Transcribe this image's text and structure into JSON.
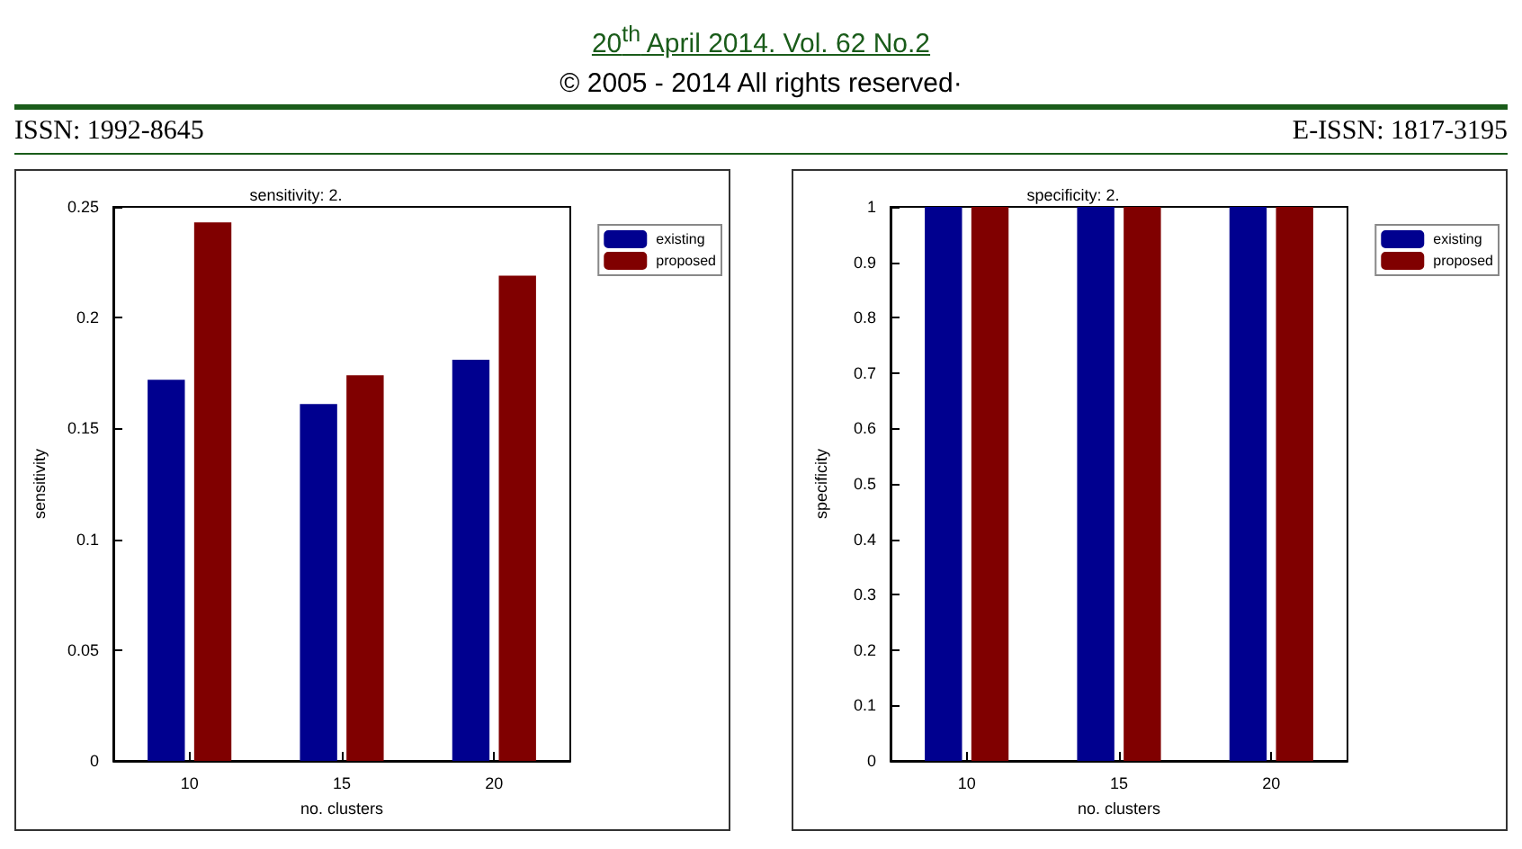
{
  "chart_data": [
    {
      "type": "bar",
      "title": "sensitivity: 2.",
      "xlabel": "no. clusters",
      "ylabel": "sensitivity",
      "categories": [
        "10",
        "15",
        "20"
      ],
      "series": [
        {
          "name": "existing",
          "color": "#00008f",
          "values": [
            0.172,
            0.161,
            0.181
          ]
        },
        {
          "name": "proposed",
          "color": "#800000",
          "values": [
            0.243,
            0.174,
            0.219
          ]
        }
      ],
      "ylim": [
        0,
        0.25
      ],
      "yticks": [
        0,
        0.05,
        0.1,
        0.15,
        0.2,
        0.25
      ],
      "grid": false,
      "legend": "top right",
      "annotations": [
        "20$^{th}$ April 2014. Vol. 62 No.2",
        "© 2005 - 2014 All rights reserved·",
        "ISSN: 1992-8645",
        "E-ISSN: 1817-3195"
      ]
    },
    {
      "type": "bar",
      "title": "specificity: 2.",
      "xlabel": "no. clusters",
      "ylabel": "specificity",
      "categories": [
        "10",
        "15",
        "20"
      ],
      "series": [
        {
          "name": "existing",
          "color": "#00008f",
          "values": [
            1,
            1,
            1
          ]
        },
        {
          "name": "proposed",
          "color": "#800000",
          "values": [
            1,
            1,
            1
          ]
        }
      ],
      "ylim": [
        0,
        1
      ],
      "yticks": [
        0,
        0.1,
        0.2,
        0.3,
        0.4,
        0.5,
        0.6,
        0.7,
        0.8,
        0.9,
        1
      ],
      "grid": false,
      "legend": "top right"
    }
  ]
}
